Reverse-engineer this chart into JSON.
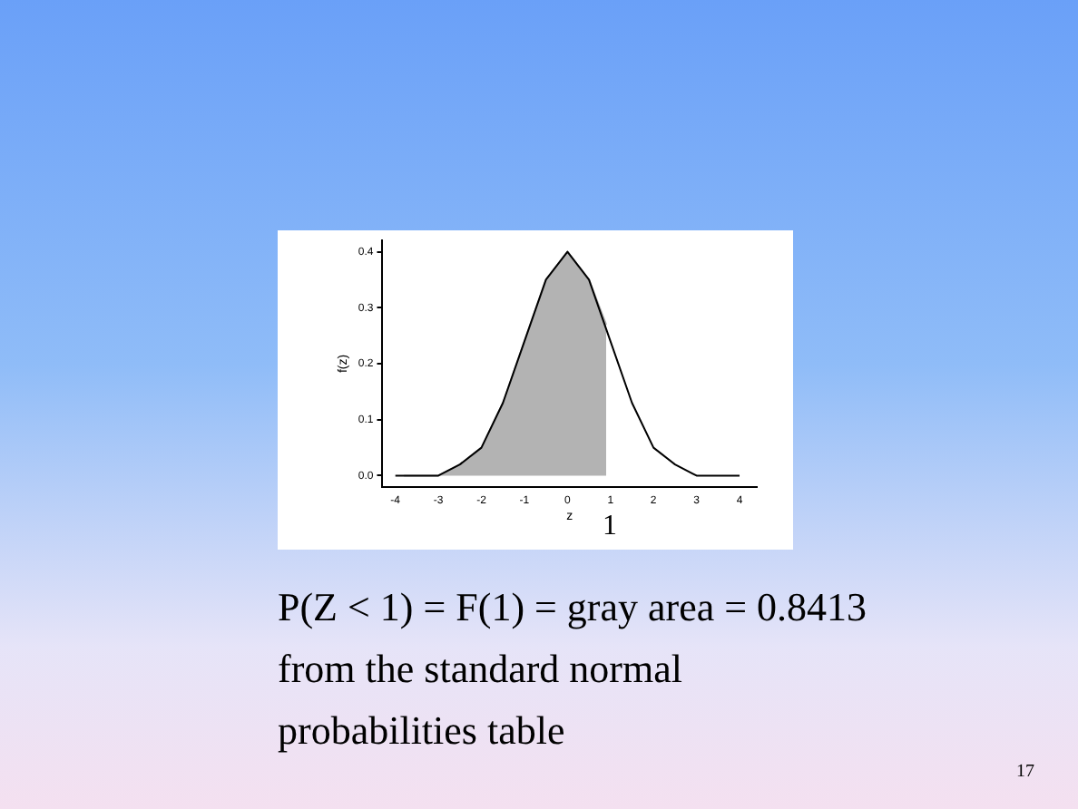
{
  "chart_data": {
    "type": "line",
    "xlabel": "z",
    "ylabel": "f(z)",
    "series": [
      {
        "type": "area",
        "color": "#b3b3b3",
        "x": [
          -3.8,
          -3.5,
          -3,
          -2.5,
          -2,
          -1.5,
          -1,
          -0.5,
          0,
          0.5,
          0.9
        ],
        "values": [
          0.0,
          0.0,
          0.0,
          0.02,
          0.05,
          0.13,
          0.24,
          0.35,
          0.4,
          0.35,
          0.27
        ]
      },
      {
        "color": "#000000",
        "x": [
          -4,
          -3.5,
          -3,
          -2.5,
          -2,
          -1.5,
          -1,
          -0.5,
          0,
          0.5,
          1,
          1.5,
          2,
          2.5,
          3,
          3.5,
          4
        ],
        "values": [
          0.0,
          0.0,
          0.0,
          0.02,
          0.05,
          0.13,
          0.24,
          0.35,
          0.4,
          0.35,
          0.24,
          0.13,
          0.05,
          0.02,
          0.0,
          0.0,
          0.0
        ]
      }
    ],
    "xlim": [
      -4.3,
      4.4
    ],
    "xticks": [
      -4,
      -3,
      -2,
      -1,
      0,
      1,
      2,
      3,
      4
    ],
    "ylim": [
      -0.02,
      0.42
    ],
    "yticks": [
      {
        "value": 0,
        "label": "0.0"
      },
      0.1,
      0.2,
      0.3,
      0.4
    ],
    "grid": false,
    "legend": false,
    "marker": "none",
    "line_style": "solid",
    "annotations": [
      "P(Z < 1)  = F(1) = gray area = 0.8413 from the standard normal probabilities table",
      "17",
      "1"
    ]
  }
}
